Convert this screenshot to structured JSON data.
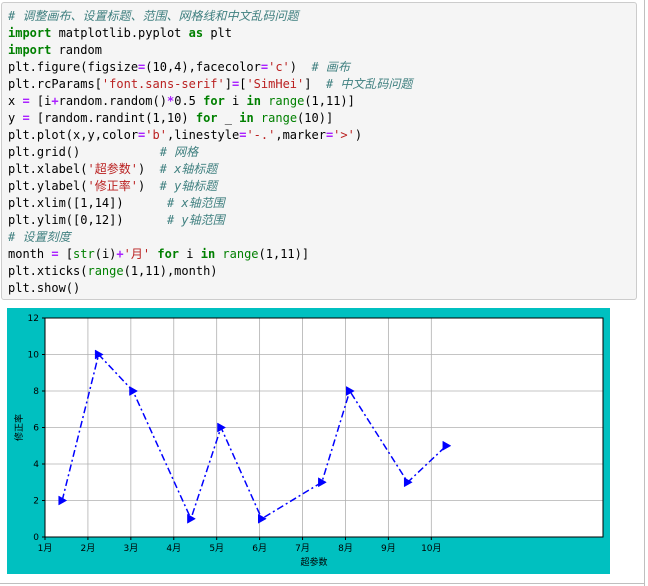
{
  "code_lines": [
    [
      {
        "t": "# 调整画布、设置标题、范围、网格线和中文乱码问题",
        "c": "cm"
      }
    ],
    [
      {
        "t": "import",
        "c": "kw"
      },
      {
        "t": " matplotlib.pyplot "
      },
      {
        "t": "as",
        "c": "kw"
      },
      {
        "t": " plt"
      }
    ],
    [
      {
        "t": "import",
        "c": "kw"
      },
      {
        "t": " random"
      }
    ],
    [
      {
        "t": "plt.figure(figsize"
      },
      {
        "t": "=",
        "c": "op"
      },
      {
        "t": "(10,4),facecolor"
      },
      {
        "t": "=",
        "c": "op"
      },
      {
        "t": "'c'",
        "c": "str"
      },
      {
        "t": ")  "
      },
      {
        "t": "# 画布",
        "c": "cm"
      }
    ],
    [
      {
        "t": "plt.rcParams["
      },
      {
        "t": "'font.sans-serif'",
        "c": "str"
      },
      {
        "t": "]"
      },
      {
        "t": "=",
        "c": "op"
      },
      {
        "t": "["
      },
      {
        "t": "'SimHei'",
        "c": "str"
      },
      {
        "t": "]  "
      },
      {
        "t": "# 中文乱码问题",
        "c": "cm"
      }
    ],
    [
      {
        "t": "x "
      },
      {
        "t": "=",
        "c": "op"
      },
      {
        "t": " [i"
      },
      {
        "t": "+",
        "c": "op"
      },
      {
        "t": "random.random()"
      },
      {
        "t": "*",
        "c": "op"
      },
      {
        "t": "0.5 "
      },
      {
        "t": "for",
        "c": "kw"
      },
      {
        "t": " i "
      },
      {
        "t": "in",
        "c": "kw"
      },
      {
        "t": " "
      },
      {
        "t": "range",
        "c": "bi"
      },
      {
        "t": "(1,11)]"
      }
    ],
    [
      {
        "t": "y "
      },
      {
        "t": "=",
        "c": "op"
      },
      {
        "t": " [random.randint(1,10) "
      },
      {
        "t": "for",
        "c": "kw"
      },
      {
        "t": " _ "
      },
      {
        "t": "in",
        "c": "kw"
      },
      {
        "t": " "
      },
      {
        "t": "range",
        "c": "bi"
      },
      {
        "t": "(10)]"
      }
    ],
    [
      {
        "t": "plt.plot(x,y,color"
      },
      {
        "t": "=",
        "c": "op"
      },
      {
        "t": "'b'",
        "c": "str"
      },
      {
        "t": ",linestyle"
      },
      {
        "t": "=",
        "c": "op"
      },
      {
        "t": "'-.'",
        "c": "str"
      },
      {
        "t": ",marker"
      },
      {
        "t": "=",
        "c": "op"
      },
      {
        "t": "'>'",
        "c": "str"
      },
      {
        "t": ")"
      }
    ],
    [
      {
        "t": "plt.grid()           "
      },
      {
        "t": "# 网格",
        "c": "cm"
      }
    ],
    [
      {
        "t": "plt.xlabel("
      },
      {
        "t": "'超参数'",
        "c": "str"
      },
      {
        "t": ")  "
      },
      {
        "t": "# x轴标题",
        "c": "cm"
      }
    ],
    [
      {
        "t": "plt.ylabel("
      },
      {
        "t": "'修正率'",
        "c": "str"
      },
      {
        "t": ")  "
      },
      {
        "t": "# y轴标题",
        "c": "cm"
      }
    ],
    [
      {
        "t": "plt.xlim([1,14])      "
      },
      {
        "t": "# x轴范围",
        "c": "cm"
      }
    ],
    [
      {
        "t": "plt.ylim([0,12])      "
      },
      {
        "t": "# y轴范围",
        "c": "cm"
      }
    ],
    [
      {
        "t": "# 设置刻度",
        "c": "cm"
      }
    ],
    [
      {
        "t": "month "
      },
      {
        "t": "=",
        "c": "op"
      },
      {
        "t": " ["
      },
      {
        "t": "str",
        "c": "bi"
      },
      {
        "t": "(i)"
      },
      {
        "t": "+",
        "c": "op"
      },
      {
        "t": "'月'",
        "c": "str"
      },
      {
        "t": " "
      },
      {
        "t": "for",
        "c": "kw"
      },
      {
        "t": " i "
      },
      {
        "t": "in",
        "c": "kw"
      },
      {
        "t": " "
      },
      {
        "t": "range",
        "c": "bi"
      },
      {
        "t": "(1,11)]"
      }
    ],
    [
      {
        "t": "plt.xticks("
      },
      {
        "t": "range",
        "c": "bi"
      },
      {
        "t": "(1,11),month)"
      }
    ],
    [
      {
        "t": "plt.show()"
      }
    ]
  ],
  "colors": {
    "figure_face": "#00c0c0",
    "axes_face": "#ffffff",
    "line": "#0000ff",
    "grid": "#b0b0b0"
  },
  "chart_data": {
    "type": "line",
    "x": [
      1.4,
      2.25,
      3.05,
      4.4,
      5.1,
      6.05,
      7.45,
      8.1,
      9.45,
      10.35
    ],
    "y": [
      2,
      10,
      8,
      1,
      6,
      1,
      3,
      8,
      3,
      5
    ],
    "line_color": "#0000ff",
    "linestyle": "-.",
    "marker": ">",
    "xlabel": "超参数",
    "ylabel": "修正率",
    "xlim": [
      1,
      14
    ],
    "ylim": [
      0,
      12
    ],
    "x_ticks": [
      1,
      2,
      3,
      4,
      5,
      6,
      7,
      8,
      9,
      10
    ],
    "x_tick_labels": [
      "1月",
      "2月",
      "3月",
      "4月",
      "5月",
      "6月",
      "7月",
      "8月",
      "9月",
      "10月"
    ],
    "y_ticks": [
      0,
      2,
      4,
      6,
      8,
      10,
      12
    ],
    "y_tick_labels": [
      "0",
      "2",
      "4",
      "6",
      "8",
      "10",
      "12"
    ],
    "grid": true
  }
}
